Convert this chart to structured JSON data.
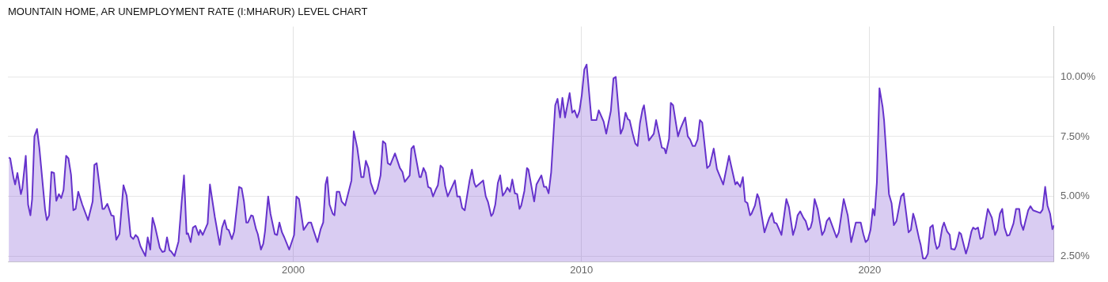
{
  "chart_data": {
    "type": "area",
    "title": "MOUNTAIN HOME, AR UNEMPLOYMENT RATE (I:MHARUR) LEVEL CHART",
    "color": "#6633cc",
    "grid": true,
    "xlim": [
      1990.1,
      2026.4
    ],
    "xticks": [
      2000,
      2010,
      2020
    ],
    "ylim": [
      2.27,
      12.1
    ],
    "yticks": [
      {
        "value": 2.5,
        "label": "2.50%"
      },
      {
        "value": 5,
        "label": "5.00%"
      },
      {
        "value": 7.5,
        "label": "7.50%"
      },
      {
        "value": 10,
        "label": "10.00%"
      }
    ],
    "x": [
      1990.13,
      1990.18,
      1990.29,
      1990.35,
      1990.43,
      1990.55,
      1990.6,
      1990.72,
      1990.8,
      1990.88,
      1990.94,
      1991.02,
      1991.11,
      1991.19,
      1991.39,
      1991.45,
      1991.53,
      1991.61,
      1991.7,
      1991.78,
      1991.87,
      1991.95,
      1992.03,
      1992.12,
      1992.2,
      1992.29,
      1992.37,
      1992.45,
      1992.54,
      1992.68,
      1992.88,
      1993.04,
      1993.1,
      1993.18,
      1993.38,
      1993.44,
      1993.55,
      1993.69,
      1993.77,
      1993.86,
      1993.97,
      1994.11,
      1994.22,
      1994.36,
      1994.45,
      1994.53,
      1994.61,
      1994.7,
      1994.87,
      1994.95,
      1995.04,
      1995.12,
      1995.2,
      1995.37,
      1995.46,
      1995.54,
      1995.62,
      1995.71,
      1995.76,
      1995.88,
      1996.02,
      1996.13,
      1996.21,
      1996.3,
      1996.35,
      1996.44,
      1996.52,
      1996.61,
      1996.72,
      1996.77,
      1996.86,
      1997.03,
      1997.11,
      1997.28,
      1997.45,
      1997.53,
      1997.62,
      1997.7,
      1997.76,
      1997.87,
      1997.95,
      1998.12,
      1998.21,
      1998.29,
      1998.37,
      1998.43,
      1998.54,
      1998.6,
      1998.71,
      1998.77,
      1998.88,
      1998.96,
      1999.02,
      1999.13,
      1999.21,
      1999.36,
      1999.44,
      1999.52,
      1999.61,
      1999.69,
      1999.86,
      2000.03,
      2000.11,
      2000.2,
      2000.36,
      2000.53,
      2000.62,
      2000.7,
      2000.84,
      2000.95,
      2001.04,
      2001.12,
      2001.18,
      2001.26,
      2001.37,
      2001.43,
      2001.51,
      2001.6,
      2001.68,
      2001.8,
      2002.02,
      2002.1,
      2002.22,
      2002.36,
      2002.44,
      2002.52,
      2002.61,
      2002.69,
      2002.83,
      2002.92,
      2003.03,
      2003.11,
      2003.2,
      2003.28,
      2003.37,
      2003.53,
      2003.7,
      2003.79,
      2003.87,
      2004.04,
      2004.1,
      2004.18,
      2004.26,
      2004.38,
      2004.43,
      2004.52,
      2004.6,
      2004.68,
      2004.77,
      2004.85,
      2004.94,
      2005.02,
      2005.11,
      2005.19,
      2005.27,
      2005.36,
      2005.61,
      2005.69,
      2005.78,
      2005.86,
      2005.95,
      2006.12,
      2006.2,
      2006.28,
      2006.34,
      2006.59,
      2006.68,
      2006.76,
      2006.87,
      2006.93,
      2007.01,
      2007.1,
      2007.18,
      2007.27,
      2007.35,
      2007.43,
      2007.52,
      2007.6,
      2007.69,
      2007.77,
      2007.85,
      2007.91,
      2008.02,
      2008.11,
      2008.16,
      2008.36,
      2008.44,
      2008.61,
      2008.7,
      2008.78,
      2008.86,
      2008.95,
      2009.09,
      2009.17,
      2009.26,
      2009.34,
      2009.43,
      2009.59,
      2009.68,
      2009.76,
      2009.85,
      2009.93,
      2010.01,
      2010.1,
      2010.18,
      2010.35,
      2010.52,
      2010.6,
      2010.77,
      2010.86,
      2011.02,
      2011.11,
      2011.19,
      2011.36,
      2011.44,
      2011.53,
      2011.61,
      2011.67,
      2011.78,
      2011.87,
      2011.95,
      2012.03,
      2012.12,
      2012.17,
      2012.34,
      2012.51,
      2012.59,
      2012.79,
      2012.88,
      2012.93,
      2013.04,
      2013.1,
      2013.18,
      2013.35,
      2013.44,
      2013.6,
      2013.69,
      2013.77,
      2013.86,
      2013.94,
      2014.03,
      2014.11,
      2014.19,
      2014.36,
      2014.45,
      2014.59,
      2014.7,
      2014.92,
      2015.12,
      2015.18,
      2015.34,
      2015.4,
      2015.51,
      2015.6,
      2015.68,
      2015.76,
      2015.85,
      2015.9,
      2016.02,
      2016.1,
      2016.16,
      2016.35,
      2016.52,
      2016.61,
      2016.69,
      2016.77,
      2016.94,
      2017.11,
      2017.2,
      2017.34,
      2017.42,
      2017.5,
      2017.59,
      2017.7,
      2017.78,
      2017.87,
      2017.95,
      2018.01,
      2018.09,
      2018.2,
      2018.35,
      2018.43,
      2018.51,
      2018.6,
      2018.85,
      2018.93,
      2019.1,
      2019.24,
      2019.36,
      2019.52,
      2019.69,
      2019.78,
      2019.86,
      2019.94,
      2020.03,
      2020.11,
      2020.17,
      2020.25,
      2020.34,
      2020.45,
      2020.5,
      2020.67,
      2020.76,
      2020.84,
      2020.93,
      2021.09,
      2021.18,
      2021.35,
      2021.43,
      2021.51,
      2021.57,
      2021.71,
      2021.77,
      2021.85,
      2021.94,
      2022.02,
      2022.1,
      2022.19,
      2022.27,
      2022.33,
      2022.41,
      2022.52,
      2022.58,
      2022.69,
      2022.78,
      2022.83,
      2022.95,
      2023.0,
      2023.11,
      2023.17,
      2023.34,
      2023.42,
      2023.53,
      2023.59,
      2023.67,
      2023.76,
      2023.84,
      2023.93,
      2024.1,
      2024.24,
      2024.35,
      2024.43,
      2024.52,
      2024.6,
      2024.68,
      2024.77,
      2024.85,
      2024.99,
      2025.08,
      2025.19,
      2025.25,
      2025.33,
      2025.5,
      2025.58,
      2025.67,
      2025.92,
      2026.0,
      2026.09,
      2026.17,
      2026.26,
      2026.34,
      2026.4
    ],
    "values": [
      6.63,
      6.59,
      5.81,
      5.5,
      5.98,
      5.1,
      5.34,
      6.7,
      4.66,
      4.21,
      4.89,
      7.51,
      7.82,
      7.04,
      4.45,
      4.01,
      4.21,
      6.02,
      5.98,
      4.82,
      5.1,
      4.93,
      5.27,
      6.7,
      6.59,
      5.91,
      4.42,
      4.48,
      5.2,
      4.66,
      4.01,
      4.79,
      6.32,
      6.39,
      4.48,
      4.48,
      4.69,
      4.21,
      4.18,
      3.19,
      3.43,
      5.47,
      5.03,
      3.33,
      3.22,
      3.39,
      3.29,
      2.92,
      2.51,
      3.29,
      2.78,
      4.11,
      3.77,
      2.85,
      2.68,
      2.71,
      3.29,
      2.75,
      2.71,
      2.51,
      3.12,
      4.79,
      5.88,
      3.43,
      3.46,
      3.09,
      3.7,
      3.77,
      3.39,
      3.6,
      3.39,
      3.87,
      5.5,
      4.14,
      2.98,
      3.7,
      4.01,
      3.63,
      3.6,
      3.22,
      3.53,
      5.4,
      5.34,
      4.79,
      3.91,
      3.91,
      4.21,
      4.18,
      3.63,
      3.43,
      2.78,
      3.02,
      3.53,
      5.0,
      4.28,
      3.43,
      3.39,
      3.91,
      3.5,
      3.29,
      2.78,
      3.39,
      5.0,
      4.89,
      3.6,
      3.91,
      3.91,
      3.6,
      3.09,
      3.63,
      3.91,
      5.5,
      5.81,
      4.66,
      4.28,
      4.21,
      5.2,
      5.2,
      4.79,
      4.62,
      5.67,
      7.72,
      7.04,
      5.81,
      5.81,
      6.49,
      6.19,
      5.57,
      5.1,
      5.3,
      5.88,
      7.31,
      7.21,
      6.39,
      6.32,
      6.8,
      6.19,
      6.02,
      5.61,
      5.88,
      7.0,
      7.11,
      6.59,
      5.81,
      5.81,
      6.19,
      5.98,
      5.4,
      5.34,
      5.0,
      5.27,
      5.47,
      6.29,
      6.19,
      5.44,
      5.0,
      5.67,
      5.0,
      5.0,
      4.52,
      4.42,
      5.67,
      6.12,
      5.57,
      5.4,
      5.67,
      5.0,
      4.76,
      4.18,
      4.28,
      4.66,
      5.57,
      5.88,
      5.03,
      5.17,
      5.37,
      5.2,
      5.71,
      5.13,
      5.1,
      4.48,
      4.62,
      5.23,
      6.19,
      6.12,
      4.79,
      5.5,
      5.88,
      5.4,
      5.4,
      5.13,
      6.02,
      8.81,
      9.08,
      8.3,
      9.12,
      8.3,
      9.32,
      8.5,
      8.6,
      8.3,
      8.57,
      9.22,
      10.31,
      10.51,
      8.19,
      8.19,
      8.6,
      8.13,
      7.62,
      8.57,
      9.93,
      10.0,
      7.62,
      7.85,
      8.5,
      8.23,
      8.19,
      7.62,
      7.21,
      7.11,
      8.06,
      8.64,
      8.81,
      7.34,
      7.62,
      8.19,
      7.04,
      7.0,
      6.8,
      7.41,
      8.91,
      8.81,
      7.51,
      7.85,
      8.3,
      7.51,
      7.38,
      7.11,
      7.11,
      7.38,
      8.19,
      8.09,
      6.19,
      6.29,
      7.0,
      6.15,
      5.5,
      6.7,
      6.36,
      5.5,
      5.61,
      5.4,
      5.81,
      4.79,
      4.72,
      4.21,
      4.28,
      4.62,
      5.1,
      4.93,
      3.5,
      4.11,
      4.31,
      3.91,
      3.87,
      3.39,
      4.89,
      4.55,
      3.39,
      3.7,
      4.21,
      4.38,
      4.11,
      3.97,
      3.6,
      3.7,
      3.97,
      4.89,
      4.45,
      3.39,
      3.56,
      3.97,
      4.11,
      3.29,
      3.5,
      4.89,
      4.21,
      3.09,
      3.91,
      3.91,
      3.43,
      3.09,
      3.19,
      3.6,
      4.48,
      4.21,
      5.57,
      9.52,
      8.74,
      8.19,
      5.1,
      4.72,
      3.8,
      3.97,
      5.0,
      5.13,
      3.5,
      3.6,
      4.28,
      4.04,
      3.26,
      2.98,
      2.41,
      2.41,
      2.61,
      3.7,
      3.8,
      3.09,
      2.81,
      2.92,
      3.7,
      3.91,
      3.53,
      3.39,
      2.81,
      2.78,
      2.92,
      3.5,
      3.43,
      2.61,
      2.92,
      3.53,
      3.7,
      3.63,
      3.7,
      3.22,
      3.29,
      4.48,
      4.11,
      3.39,
      3.6,
      4.28,
      4.48,
      3.7,
      3.36,
      3.39,
      3.87,
      4.48,
      4.48,
      3.87,
      3.6,
      4.42,
      4.59,
      4.42,
      4.31,
      4.45,
      5.4,
      4.62,
      4.28,
      3.63,
      3.8
    ]
  }
}
